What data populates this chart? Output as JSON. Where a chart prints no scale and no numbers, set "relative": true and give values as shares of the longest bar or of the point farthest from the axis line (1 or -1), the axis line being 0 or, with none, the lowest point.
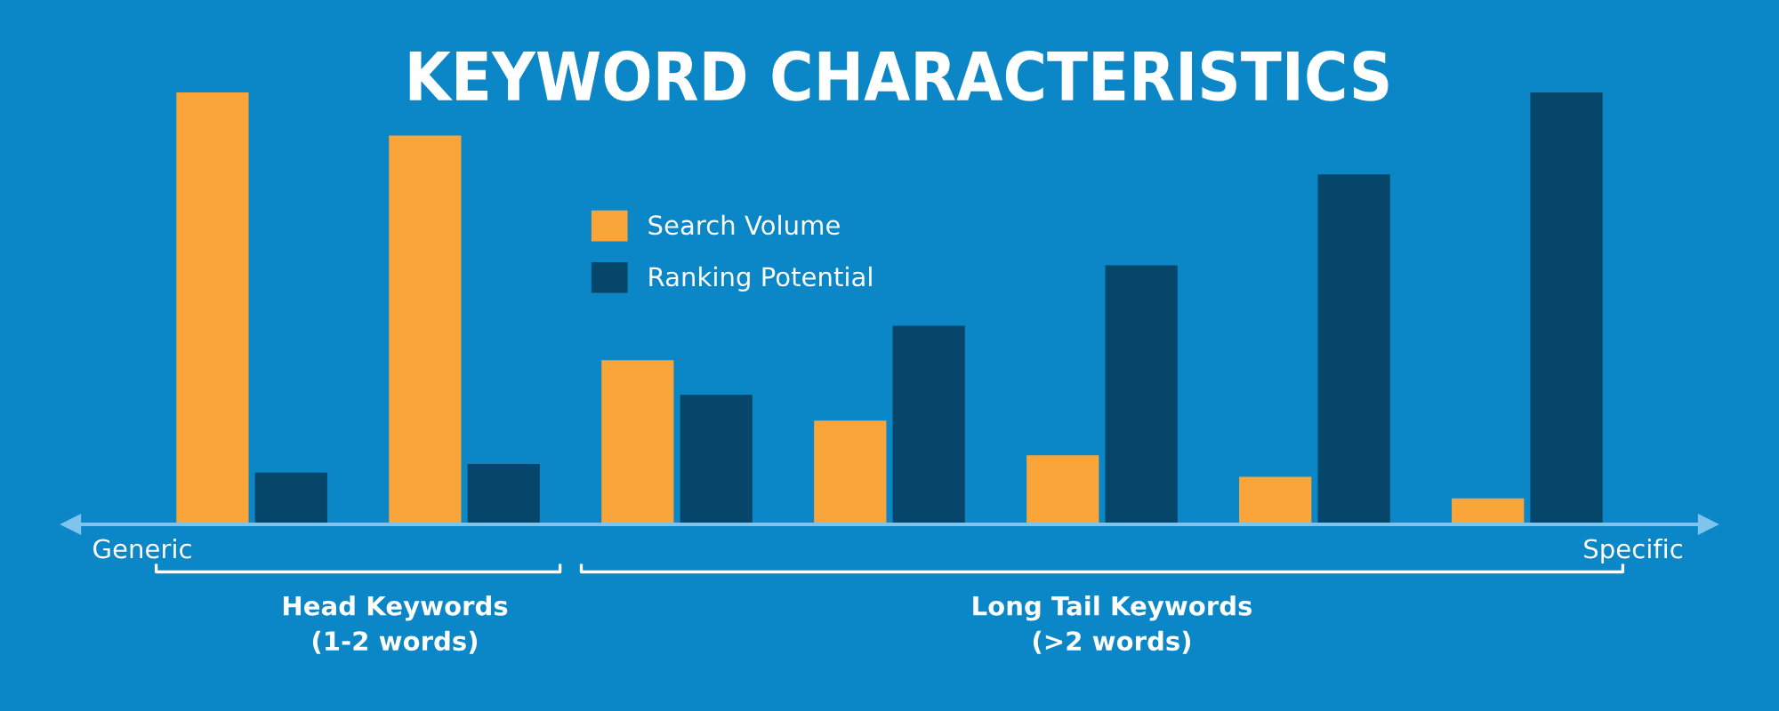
{
  "chart_data": {
    "type": "bar",
    "title": "KEYWORD CHARACTERISTICS",
    "relative": true,
    "categories": [
      null,
      null,
      null,
      null,
      null,
      null,
      null
    ],
    "series": [
      {
        "name": "Search Volume",
        "color": "#f9a53a",
        "values": [
          1.0,
          0.9,
          0.38,
          0.24,
          0.16,
          0.11,
          0.06
        ]
      },
      {
        "name": "Ranking Potential",
        "color": "#05466a",
        "values": [
          0.12,
          0.14,
          0.3,
          0.46,
          0.6,
          0.81,
          1.0
        ]
      }
    ],
    "legend": "top",
    "grid": false,
    "annotations": [
      "Generic",
      "Specific",
      "Head Keywords\n(1-2 words)",
      "Long Tail Keywords\n(>2 words)"
    ]
  }
}
